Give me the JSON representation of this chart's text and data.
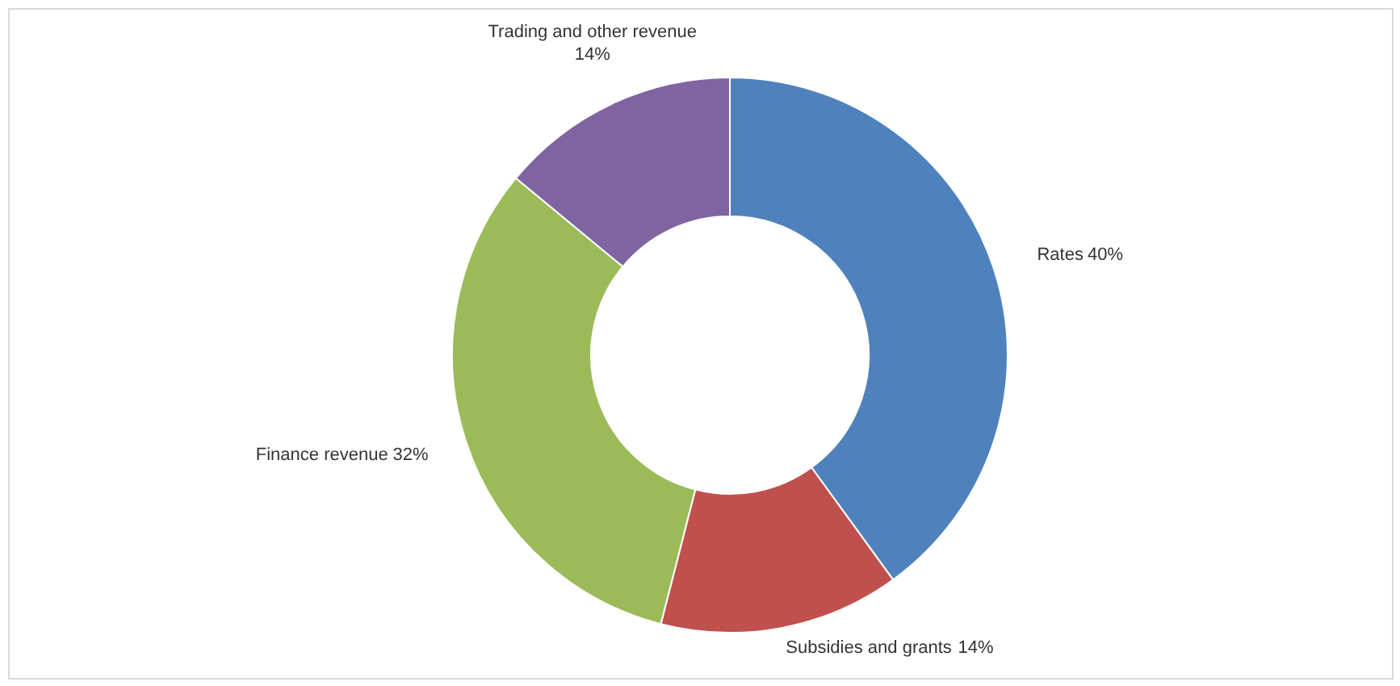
{
  "chart_data": {
    "type": "donut",
    "categories": [
      "Rates",
      "Subsidies and grants",
      "Finance revenue",
      "Trading and other revenue"
    ],
    "values": [
      40,
      14,
      32,
      14
    ],
    "colors": [
      "#4f81bd",
      "#c0504d",
      "#9bbb59",
      "#8064a2"
    ],
    "value_labels": [
      "40%",
      "14%",
      "32%",
      "14%"
    ]
  }
}
